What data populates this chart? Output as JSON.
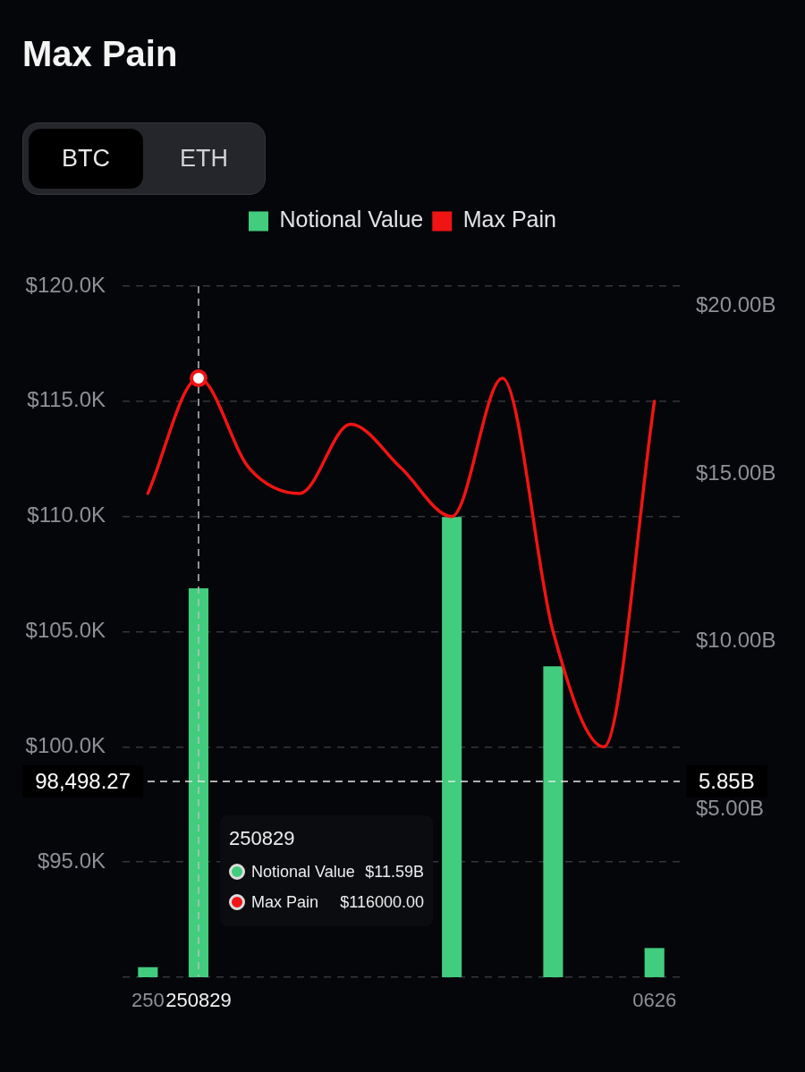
{
  "chart_data": {
    "type": "bar",
    "title": "Max Pain",
    "categories": [
      "250",
      "250829",
      null,
      null,
      null,
      null,
      null,
      null,
      null,
      null,
      "0626"
    ],
    "series": [
      {
        "name": "Notional Value",
        "axis": "y2",
        "color": "#41cc7e",
        "values": [
          0.3,
          11.59,
          null,
          null,
          null,
          null,
          13.72,
          null,
          9.27,
          null,
          0.87
        ]
      },
      {
        "name": "Max Pain",
        "type": "line",
        "color": "#f01414",
        "values": [
          111000,
          116000,
          112100,
          111000,
          114000,
          112100,
          110000,
          116000,
          105000,
          100000,
          115000
        ]
      }
    ],
    "ylim": [
      90000,
      120000
    ],
    "yticks": [
      {
        "value": 90000,
        "label": null
      },
      {
        "value": 95000,
        "label": "$95.0K"
      },
      {
        "value": 100000,
        "label": "$100.0K"
      },
      {
        "value": 105000,
        "label": "$105.0K"
      },
      {
        "value": 110000,
        "label": "$110.0K"
      },
      {
        "value": 115000,
        "label": "$115.0K"
      },
      {
        "value": 120000,
        "label": "$120.0K"
      }
    ],
    "y2lim": [
      0,
      20.6
    ],
    "y2ticks": [
      {
        "value": 5,
        "label": "$5.00B"
      },
      {
        "value": 10,
        "label": "$10.00B"
      },
      {
        "value": 15,
        "label": "$15.00B"
      },
      {
        "value": 20,
        "label": "$20.00B"
      }
    ],
    "ref_lines": [
      {
        "axis": "x",
        "value": "250829",
        "color": "#bdbdbd",
        "line_style": "dashed"
      },
      {
        "axis": "y",
        "value": 98498.27,
        "label": "98,498.27",
        "color": "#e6e6e6",
        "line_style": "dashed"
      }
    ],
    "annotations": [
      "BTC",
      "ETH",
      "$11.59B",
      "$116000.00",
      "5.85B"
    ],
    "grid": "y",
    "legend": "top"
  }
}
